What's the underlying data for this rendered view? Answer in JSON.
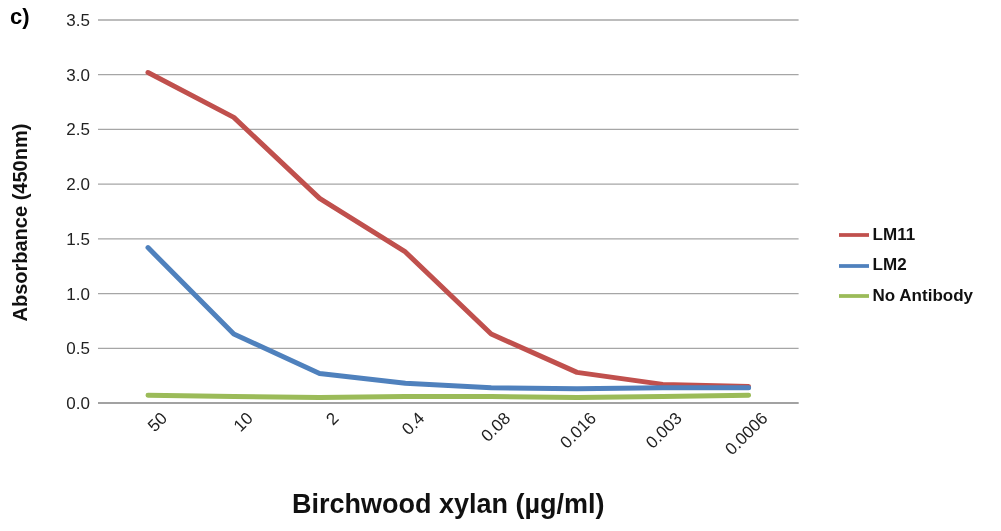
{
  "chart_data": {
    "type": "line",
    "xlabel": "Birchwood  xylan (µg/ml)",
    "ylabel": "Absorbance (450nm)",
    "annotations": [
      "c)"
    ],
    "categories": [
      "50",
      "10",
      "2",
      "0.4",
      "0.08",
      "0.016",
      "0.003",
      "0.0006"
    ],
    "series": [
      {
        "name": "LM11",
        "color": "#c0504d",
        "values": [
          3.02,
          2.61,
          1.87,
          1.38,
          0.63,
          0.28,
          0.17,
          0.15
        ]
      },
      {
        "name": "LM2",
        "color": "#4f81bd",
        "values": [
          1.42,
          0.63,
          0.27,
          0.18,
          0.14,
          0.13,
          0.14,
          0.14
        ]
      },
      {
        "name": "No Antibody",
        "color": "#9bbb59",
        "values": [
          0.07,
          0.06,
          0.05,
          0.06,
          0.06,
          0.05,
          0.06,
          0.07
        ]
      }
    ],
    "ylim": [
      0,
      3.5
    ],
    "yticks": [
      {
        "value": 0,
        "label": "0.0"
      },
      {
        "value": 0.5,
        "label": "0.5"
      },
      {
        "value": 1,
        "label": "1.0"
      },
      {
        "value": 1.5,
        "label": "1.5"
      },
      {
        "value": 2,
        "label": "2.0"
      },
      {
        "value": 2.5,
        "label": "2.5"
      },
      {
        "value": 3,
        "label": "3.0"
      },
      {
        "value": 3.5,
        "label": "3.5"
      }
    ],
    "grid": "y",
    "legend": "right",
    "marker": "none",
    "line_style": "solid"
  }
}
